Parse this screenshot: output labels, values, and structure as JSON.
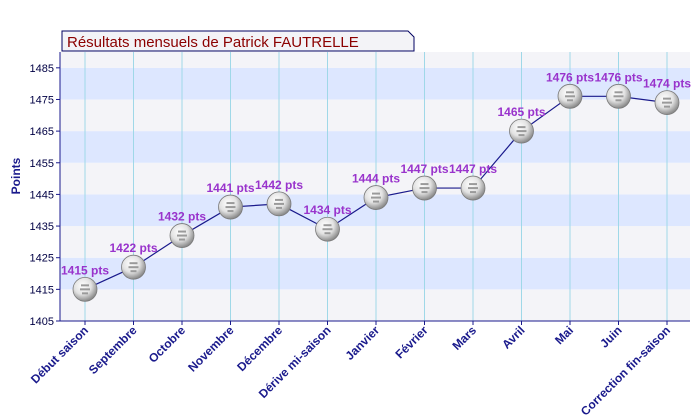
{
  "chart_data": {
    "type": "line",
    "title": "Résultats mensuels de Patrick FAUTRELLE",
    "xlabel": "",
    "ylabel": "Points",
    "categories": [
      "Début saison",
      "Septembre",
      "Octobre",
      "Novembre",
      "Décembre",
      "Dérive mi-saison",
      "Janvier",
      "Février",
      "Mars",
      "Avril",
      "Mai",
      "Juin",
      "Correction fin-saison"
    ],
    "series": [
      {
        "values": [
          1415,
          1422,
          1432,
          1441,
          1442,
          1434,
          1444,
          1447,
          1447,
          1465,
          1476,
          1476,
          1474
        ],
        "labels": [
          "1415 pts",
          "1422 pts",
          "1432 pts",
          "1441 pts",
          "1442 pts",
          "1434 pts",
          "1444 pts",
          "1447 pts",
          "1447 pts",
          "1465 pts",
          "1476 pts",
          "1476 pts",
          "1474 pts"
        ]
      }
    ],
    "ylim": [
      1405,
      1490
    ],
    "yticks": [
      1405,
      1415,
      1425,
      1435,
      1445,
      1455,
      1465,
      1475,
      1485
    ],
    "grid": true,
    "legend": "none",
    "colors": {
      "band_light": "#f4f4f8",
      "band_blue": "#dde7ff",
      "gridline_vertical": "#9fd8e8",
      "line": "#1a1a8c",
      "axis": "#1a1a8c",
      "title_text": "#8b0000",
      "title_border": "#000060",
      "data_label": "#9933cc",
      "marker": "#d0d0d0"
    }
  }
}
